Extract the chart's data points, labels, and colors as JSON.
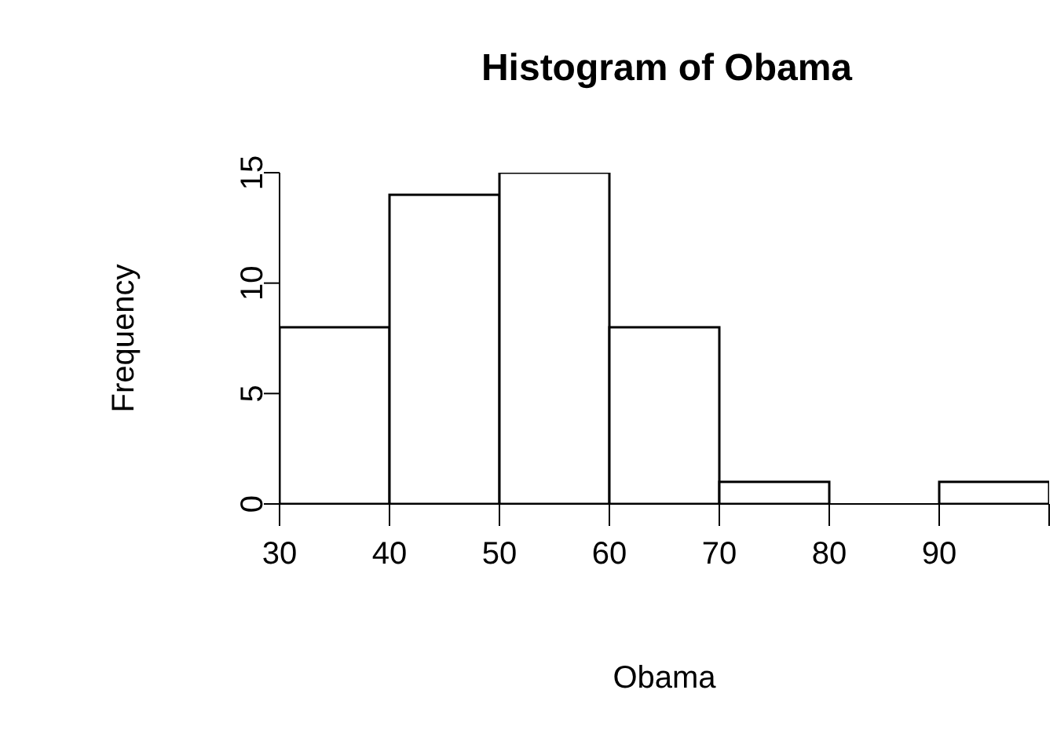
{
  "chart_data": {
    "type": "histogram",
    "title": "Histogram of Obama",
    "xlabel": "Obama",
    "ylabel": "Frequency",
    "bins": [
      30,
      40,
      50,
      60,
      70,
      80,
      90,
      100
    ],
    "values": [
      8,
      14,
      15,
      8,
      1,
      0,
      1
    ],
    "color": "#ffffff",
    "xlim": [
      30,
      100
    ],
    "xticks": [
      30,
      40,
      50,
      60,
      70,
      80,
      90,
      {
        "value": 100,
        "label": null
      }
    ],
    "ylim": [
      0,
      15
    ],
    "yticks": [
      0,
      5,
      10,
      15
    ],
    "grid": false
  }
}
